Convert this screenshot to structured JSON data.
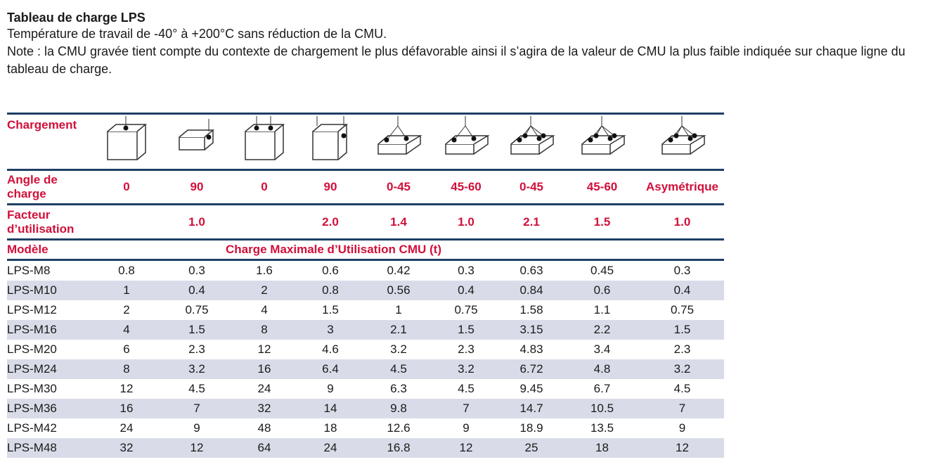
{
  "title": "Tableau de charge LPS",
  "line1": "Température de travail de -40° à +200°C sans réduction de la CMU.",
  "line2": "Note : la CMU gravée tient compte du contexte de chargement le plus défavorable ainsi il s’agira de la valeur de CMU la plus faible indiquée sur chaque ligne du tableau de charge.",
  "colors": {
    "header_text": "#d0103a",
    "rule": "#1f3f66",
    "stripe": "#d9dce8"
  },
  "table": {
    "chargement_label": "Chargement",
    "icons": [
      "single-top-lift-icon",
      "single-side-lift-icon",
      "double-top-lift-icon",
      "double-side-lift-icon",
      "two-leg-sling-icon",
      "two-leg-sling-icon",
      "four-leg-sling-icon",
      "four-leg-sling-icon",
      "asymmetric-sling-icon"
    ],
    "angle_label": "Angle de charge",
    "angles": [
      "0",
      "90",
      "0",
      "90",
      "0-45",
      "45-60",
      "0-45",
      "45-60",
      "Asymétrique"
    ],
    "facteur_label": "Facteur d’utilisation",
    "facteurs": [
      "",
      "1.0",
      "",
      "2.0",
      "1.4",
      "1.0",
      "2.1",
      "1.5",
      "1.0"
    ],
    "modele_label": "Modèle",
    "cmu_label": "Charge Maximale d’Utilisation CMU (t)",
    "rows": [
      [
        "LPS-M8",
        "0.8",
        "0.3",
        "1.6",
        "0.6",
        "0.42",
        "0.3",
        "0.63",
        "0.45",
        "0.3"
      ],
      [
        "LPS-M10",
        "1",
        "0.4",
        "2",
        "0.8",
        "0.56",
        "0.4",
        "0.84",
        "0.6",
        "0.4"
      ],
      [
        "LPS-M12",
        "2",
        "0.75",
        "4",
        "1.5",
        "1",
        "0.75",
        "1.58",
        "1.1",
        "0.75"
      ],
      [
        "LPS-M16",
        "4",
        "1.5",
        "8",
        "3",
        "2.1",
        "1.5",
        "3.15",
        "2.2",
        "1.5"
      ],
      [
        "LPS-M20",
        "6",
        "2.3",
        "12",
        "4.6",
        "3.2",
        "2.3",
        "4.83",
        "3.4",
        "2.3"
      ],
      [
        "LPS-M24",
        "8",
        "3.2",
        "16",
        "6.4",
        "4.5",
        "3.2",
        "6.72",
        "4.8",
        "3.2"
      ],
      [
        "LPS-M30",
        "12",
        "4.5",
        "24",
        "9",
        "6.3",
        "4.5",
        "9.45",
        "6.7",
        "4.5"
      ],
      [
        "LPS-M36",
        "16",
        "7",
        "32",
        "14",
        "9.8",
        "7",
        "14.7",
        "10.5",
        "7"
      ],
      [
        "LPS-M42",
        "24",
        "9",
        "48",
        "18",
        "12.6",
        "9",
        "18.9",
        "13.5",
        "9"
      ],
      [
        "LPS-M48",
        "32",
        "12",
        "64",
        "24",
        "16.8",
        "12",
        "25",
        "18",
        "12"
      ]
    ]
  }
}
